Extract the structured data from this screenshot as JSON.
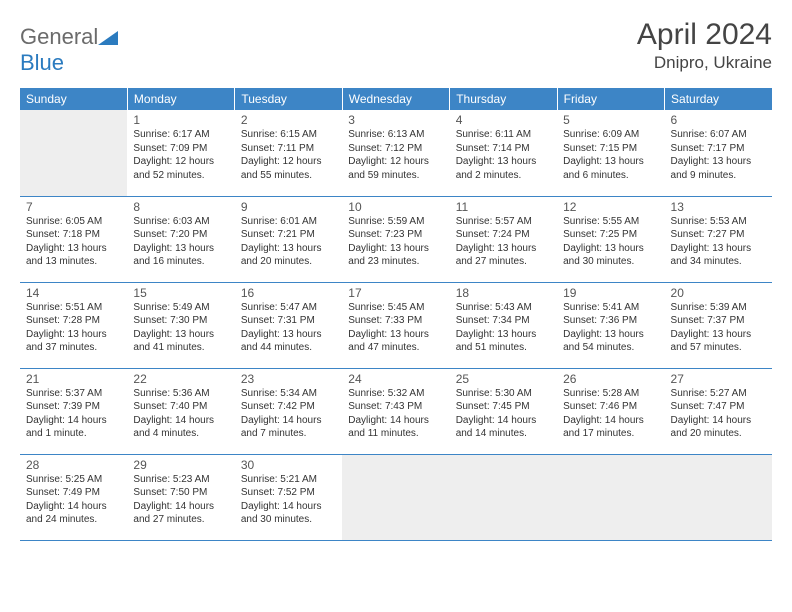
{
  "brand": {
    "part1": "General",
    "part2": "Blue"
  },
  "title": "April 2024",
  "location": "Dnipro, Ukraine",
  "colors": {
    "header_bg": "#3d85c6",
    "header_fg": "#ffffff",
    "cell_border": "#3d85c6",
    "empty_bg": "#eeeeee",
    "logo_gray": "#6b6b6b",
    "logo_blue": "#2b7bbf"
  },
  "days_of_week": [
    "Sunday",
    "Monday",
    "Tuesday",
    "Wednesday",
    "Thursday",
    "Friday",
    "Saturday"
  ],
  "weeks": [
    [
      {
        "empty": true
      },
      {
        "n": "1",
        "sr": "Sunrise: 6:17 AM",
        "ss": "Sunset: 7:09 PM",
        "d1": "Daylight: 12 hours",
        "d2": "and 52 minutes."
      },
      {
        "n": "2",
        "sr": "Sunrise: 6:15 AM",
        "ss": "Sunset: 7:11 PM",
        "d1": "Daylight: 12 hours",
        "d2": "and 55 minutes."
      },
      {
        "n": "3",
        "sr": "Sunrise: 6:13 AM",
        "ss": "Sunset: 7:12 PM",
        "d1": "Daylight: 12 hours",
        "d2": "and 59 minutes."
      },
      {
        "n": "4",
        "sr": "Sunrise: 6:11 AM",
        "ss": "Sunset: 7:14 PM",
        "d1": "Daylight: 13 hours",
        "d2": "and 2 minutes."
      },
      {
        "n": "5",
        "sr": "Sunrise: 6:09 AM",
        "ss": "Sunset: 7:15 PM",
        "d1": "Daylight: 13 hours",
        "d2": "and 6 minutes."
      },
      {
        "n": "6",
        "sr": "Sunrise: 6:07 AM",
        "ss": "Sunset: 7:17 PM",
        "d1": "Daylight: 13 hours",
        "d2": "and 9 minutes."
      }
    ],
    [
      {
        "n": "7",
        "sr": "Sunrise: 6:05 AM",
        "ss": "Sunset: 7:18 PM",
        "d1": "Daylight: 13 hours",
        "d2": "and 13 minutes."
      },
      {
        "n": "8",
        "sr": "Sunrise: 6:03 AM",
        "ss": "Sunset: 7:20 PM",
        "d1": "Daylight: 13 hours",
        "d2": "and 16 minutes."
      },
      {
        "n": "9",
        "sr": "Sunrise: 6:01 AM",
        "ss": "Sunset: 7:21 PM",
        "d1": "Daylight: 13 hours",
        "d2": "and 20 minutes."
      },
      {
        "n": "10",
        "sr": "Sunrise: 5:59 AM",
        "ss": "Sunset: 7:23 PM",
        "d1": "Daylight: 13 hours",
        "d2": "and 23 minutes."
      },
      {
        "n": "11",
        "sr": "Sunrise: 5:57 AM",
        "ss": "Sunset: 7:24 PM",
        "d1": "Daylight: 13 hours",
        "d2": "and 27 minutes."
      },
      {
        "n": "12",
        "sr": "Sunrise: 5:55 AM",
        "ss": "Sunset: 7:25 PM",
        "d1": "Daylight: 13 hours",
        "d2": "and 30 minutes."
      },
      {
        "n": "13",
        "sr": "Sunrise: 5:53 AM",
        "ss": "Sunset: 7:27 PM",
        "d1": "Daylight: 13 hours",
        "d2": "and 34 minutes."
      }
    ],
    [
      {
        "n": "14",
        "sr": "Sunrise: 5:51 AM",
        "ss": "Sunset: 7:28 PM",
        "d1": "Daylight: 13 hours",
        "d2": "and 37 minutes."
      },
      {
        "n": "15",
        "sr": "Sunrise: 5:49 AM",
        "ss": "Sunset: 7:30 PM",
        "d1": "Daylight: 13 hours",
        "d2": "and 41 minutes."
      },
      {
        "n": "16",
        "sr": "Sunrise: 5:47 AM",
        "ss": "Sunset: 7:31 PM",
        "d1": "Daylight: 13 hours",
        "d2": "and 44 minutes."
      },
      {
        "n": "17",
        "sr": "Sunrise: 5:45 AM",
        "ss": "Sunset: 7:33 PM",
        "d1": "Daylight: 13 hours",
        "d2": "and 47 minutes."
      },
      {
        "n": "18",
        "sr": "Sunrise: 5:43 AM",
        "ss": "Sunset: 7:34 PM",
        "d1": "Daylight: 13 hours",
        "d2": "and 51 minutes."
      },
      {
        "n": "19",
        "sr": "Sunrise: 5:41 AM",
        "ss": "Sunset: 7:36 PM",
        "d1": "Daylight: 13 hours",
        "d2": "and 54 minutes."
      },
      {
        "n": "20",
        "sr": "Sunrise: 5:39 AM",
        "ss": "Sunset: 7:37 PM",
        "d1": "Daylight: 13 hours",
        "d2": "and 57 minutes."
      }
    ],
    [
      {
        "n": "21",
        "sr": "Sunrise: 5:37 AM",
        "ss": "Sunset: 7:39 PM",
        "d1": "Daylight: 14 hours",
        "d2": "and 1 minute."
      },
      {
        "n": "22",
        "sr": "Sunrise: 5:36 AM",
        "ss": "Sunset: 7:40 PM",
        "d1": "Daylight: 14 hours",
        "d2": "and 4 minutes."
      },
      {
        "n": "23",
        "sr": "Sunrise: 5:34 AM",
        "ss": "Sunset: 7:42 PM",
        "d1": "Daylight: 14 hours",
        "d2": "and 7 minutes."
      },
      {
        "n": "24",
        "sr": "Sunrise: 5:32 AM",
        "ss": "Sunset: 7:43 PM",
        "d1": "Daylight: 14 hours",
        "d2": "and 11 minutes."
      },
      {
        "n": "25",
        "sr": "Sunrise: 5:30 AM",
        "ss": "Sunset: 7:45 PM",
        "d1": "Daylight: 14 hours",
        "d2": "and 14 minutes."
      },
      {
        "n": "26",
        "sr": "Sunrise: 5:28 AM",
        "ss": "Sunset: 7:46 PM",
        "d1": "Daylight: 14 hours",
        "d2": "and 17 minutes."
      },
      {
        "n": "27",
        "sr": "Sunrise: 5:27 AM",
        "ss": "Sunset: 7:47 PM",
        "d1": "Daylight: 14 hours",
        "d2": "and 20 minutes."
      }
    ],
    [
      {
        "n": "28",
        "sr": "Sunrise: 5:25 AM",
        "ss": "Sunset: 7:49 PM",
        "d1": "Daylight: 14 hours",
        "d2": "and 24 minutes."
      },
      {
        "n": "29",
        "sr": "Sunrise: 5:23 AM",
        "ss": "Sunset: 7:50 PM",
        "d1": "Daylight: 14 hours",
        "d2": "and 27 minutes."
      },
      {
        "n": "30",
        "sr": "Sunrise: 5:21 AM",
        "ss": "Sunset: 7:52 PM",
        "d1": "Daylight: 14 hours",
        "d2": "and 30 minutes."
      },
      {
        "empty": true
      },
      {
        "empty": true
      },
      {
        "empty": true
      },
      {
        "empty": true
      }
    ]
  ]
}
